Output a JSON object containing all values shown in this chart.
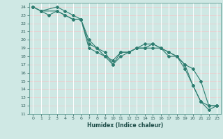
{
  "xlabel": "Humidex (Indice chaleur)",
  "bg_color": "#cfe8e4",
  "grid_color_h": "#e8d0d0",
  "grid_color_v": "#ffffff",
  "line_color": "#2e7d70",
  "xlim": [
    -0.5,
    23.5
  ],
  "ylim": [
    11,
    24.5
  ],
  "xticks": [
    0,
    1,
    2,
    3,
    4,
    5,
    6,
    7,
    8,
    9,
    10,
    11,
    12,
    13,
    14,
    15,
    16,
    17,
    18,
    19,
    20,
    21,
    22,
    23
  ],
  "yticks": [
    11,
    12,
    13,
    14,
    15,
    16,
    17,
    18,
    19,
    20,
    21,
    22,
    23,
    24
  ],
  "series": [
    {
      "x": [
        0,
        1,
        3,
        4,
        5,
        6,
        7,
        8,
        9,
        10,
        11,
        12,
        13,
        14,
        15,
        16,
        17,
        18,
        19,
        20,
        21,
        22,
        23
      ],
      "y": [
        24,
        23.5,
        24,
        23.5,
        23,
        22.5,
        20,
        19,
        18.5,
        17,
        18,
        18.5,
        19,
        19,
        19,
        19,
        18.5,
        18,
        17,
        16.5,
        15,
        12,
        12
      ]
    },
    {
      "x": [
        0,
        1,
        3,
        4,
        5,
        6,
        7,
        8,
        9,
        10,
        11,
        12,
        13,
        14,
        15,
        16,
        17,
        18,
        19,
        20,
        21,
        22,
        23
      ],
      "y": [
        24,
        23.5,
        23.5,
        23,
        22.5,
        22.5,
        19.5,
        19,
        18,
        17,
        18.5,
        18.5,
        19,
        19.5,
        19.5,
        19,
        18,
        18,
        16.5,
        14.5,
        12.5,
        11.5,
        12
      ]
    },
    {
      "x": [
        0,
        1,
        2,
        3,
        4,
        5,
        6,
        7,
        8,
        9,
        10,
        11,
        12,
        13,
        14,
        15,
        16,
        17,
        18,
        19,
        20,
        21,
        22,
        23
      ],
      "y": [
        24,
        23.5,
        23,
        23.5,
        23,
        22.5,
        22.5,
        19,
        18.5,
        18,
        17.5,
        18.5,
        18.5,
        19,
        19,
        19.5,
        19,
        18.5,
        18,
        17,
        14.5,
        12.5,
        12,
        12
      ]
    }
  ]
}
